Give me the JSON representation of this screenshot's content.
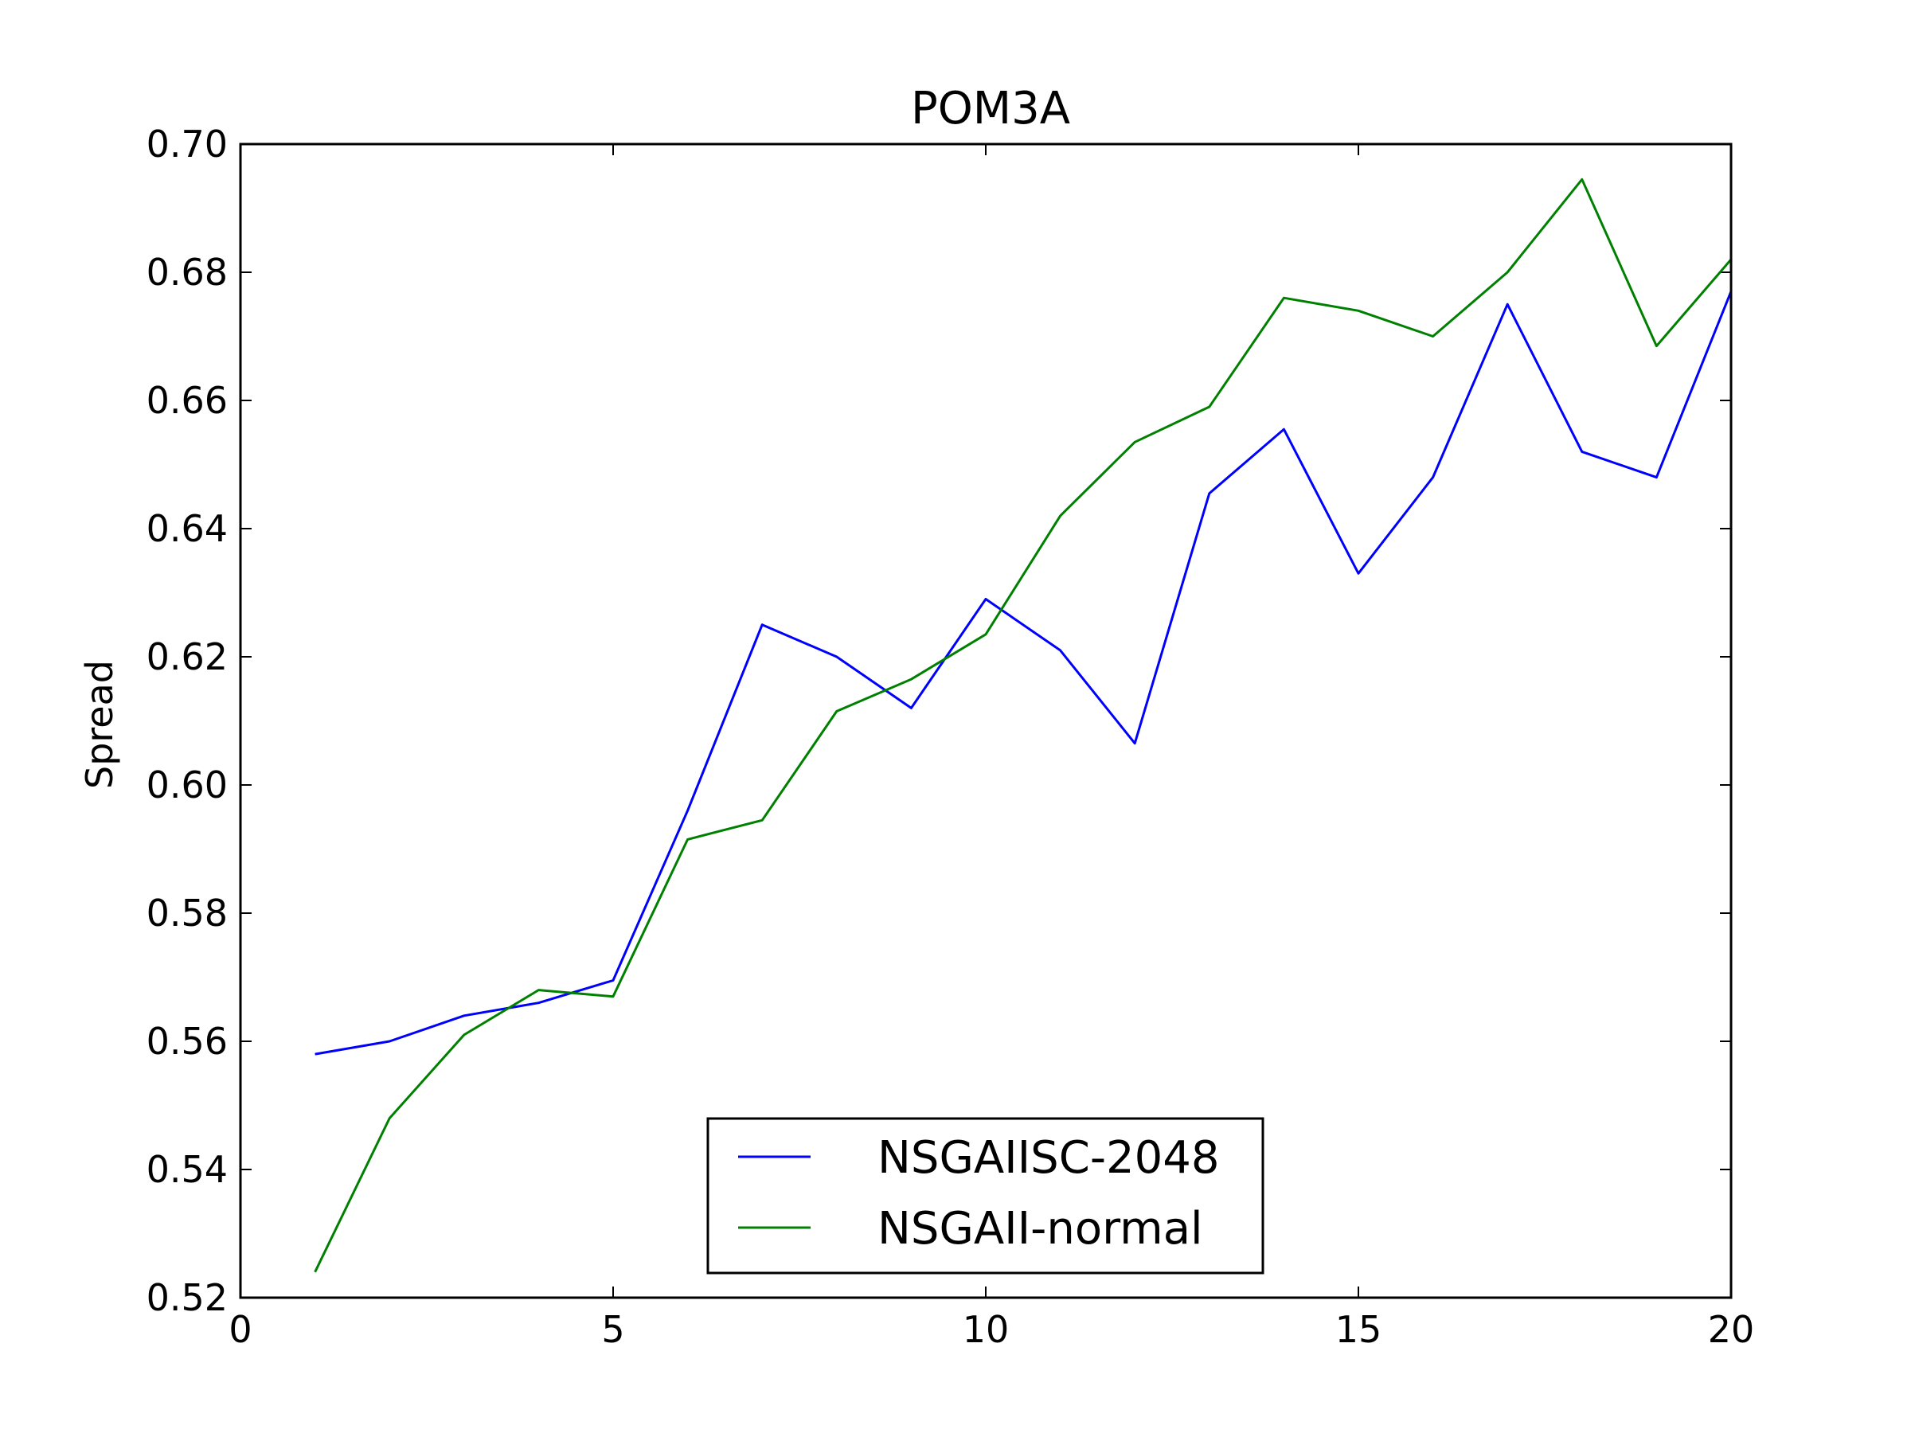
{
  "chart_data": {
    "type": "line",
    "title": "POM3A",
    "xlabel": "",
    "ylabel": "Spread",
    "xlim": [
      0,
      20
    ],
    "ylim": [
      0.52,
      0.7
    ],
    "xticks": [
      0,
      5,
      10,
      15,
      20
    ],
    "xtick_labels": [
      "0",
      "5",
      "10",
      "15",
      "20"
    ],
    "yticks": [
      0.52,
      0.54,
      0.56,
      0.58,
      0.6,
      0.62,
      0.64,
      0.66,
      0.68,
      0.7
    ],
    "ytick_labels": [
      "0.52",
      "0.54",
      "0.56",
      "0.58",
      "0.60",
      "0.62",
      "0.64",
      "0.66",
      "0.68",
      "0.70"
    ],
    "grid": false,
    "legend_position": "bottom-center",
    "x": [
      1,
      2,
      3,
      4,
      5,
      6,
      7,
      8,
      9,
      10,
      11,
      12,
      13,
      14,
      15,
      16,
      17,
      18,
      19,
      20
    ],
    "series": [
      {
        "name": "NSGAIISC-2048",
        "color": "#0000ff",
        "values": [
          0.558,
          0.56,
          0.564,
          0.566,
          0.5695,
          0.596,
          0.625,
          0.62,
          0.612,
          0.629,
          0.621,
          0.6065,
          0.6455,
          0.6555,
          0.633,
          0.648,
          0.675,
          0.652,
          0.648,
          0.677
        ]
      },
      {
        "name": "NSGAII-normal",
        "color": "#008000",
        "values": [
          0.524,
          0.548,
          0.561,
          0.568,
          0.567,
          0.5915,
          0.5945,
          0.6115,
          0.6165,
          0.6235,
          0.642,
          0.6535,
          0.659,
          0.676,
          0.674,
          0.67,
          0.68,
          0.6945,
          0.6685,
          0.682
        ]
      }
    ]
  }
}
